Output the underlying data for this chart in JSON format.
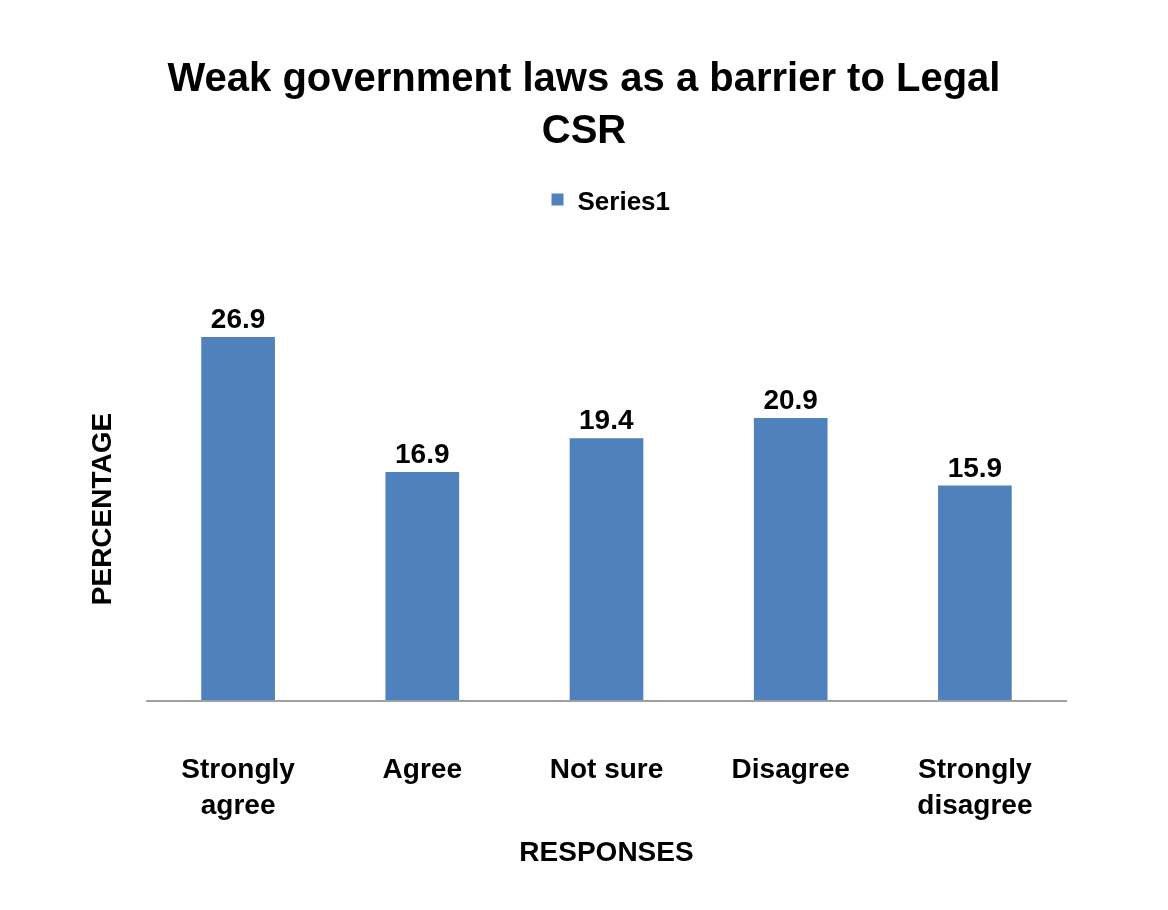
{
  "chart_data": {
    "type": "bar",
    "title": "Weak government laws as a barrier to Legal CSR",
    "xlabel": "RESPONSES",
    "ylabel": "PERCENTAGE",
    "categories": [
      "Strongly agree",
      "Agree",
      "Not sure",
      "Disagree",
      "Strongly disagree"
    ],
    "series": [
      {
        "name": "Series1",
        "color": "#4f81bd",
        "values": [
          26.9,
          16.9,
          19.4,
          20.9,
          15.9
        ]
      }
    ],
    "tick_labels": "x",
    "data_labels": true,
    "legend": "top",
    "grid": false
  }
}
